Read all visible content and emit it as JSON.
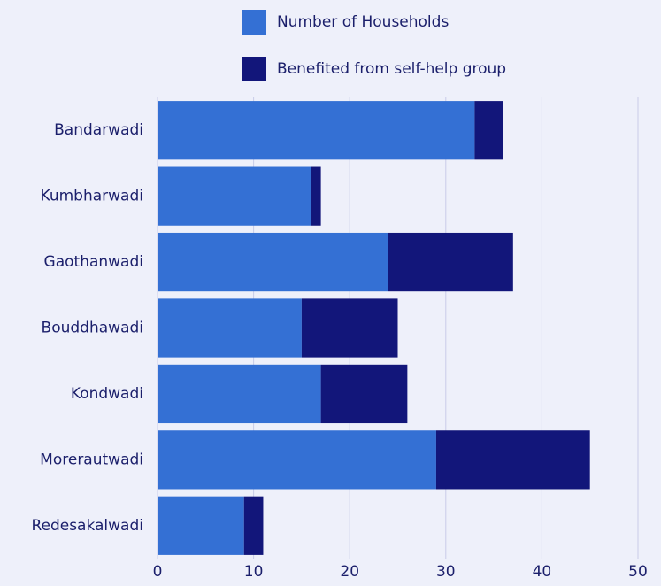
{
  "chart_data": {
    "type": "stacked-barh",
    "categories": [
      "Bandarwadi",
      "Kumbharwadi",
      "Gaothanwadi",
      "Bouddhawadi",
      "Kondwadi",
      "Morerautwadi",
      "Redesakalwadi"
    ],
    "series": [
      {
        "name": "Number of Households",
        "color": "#3470d4",
        "values": [
          33,
          16,
          24,
          15,
          17,
          29,
          9
        ]
      },
      {
        "name": "Benefited from self-help group",
        "color": "#12167a",
        "values": [
          3,
          1,
          13,
          10,
          9,
          16,
          2
        ]
      }
    ],
    "xlim": [
      0,
      50
    ],
    "xticks": [
      0,
      10,
      20,
      30,
      40,
      50
    ],
    "grid": true
  }
}
